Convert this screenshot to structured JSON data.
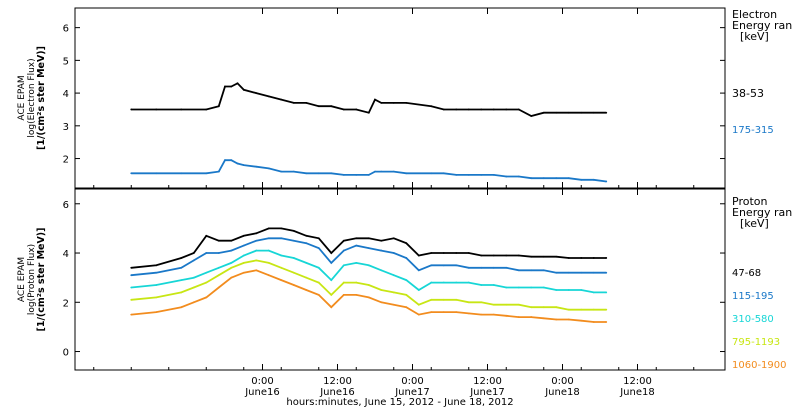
{
  "footer": {
    "xlabel": "hours:minutes, June 15, 2012 - June 18, 2012"
  },
  "x_ticks": [
    {
      "time": "0:00",
      "date": "June16"
    },
    {
      "time": "12:00",
      "date": "June16"
    },
    {
      "time": "0:00",
      "date": "June17"
    },
    {
      "time": "12:00",
      "date": "June17"
    },
    {
      "time": "0:00",
      "date": "June18"
    },
    {
      "time": "12:00",
      "date": "June18"
    }
  ],
  "colors": {
    "black": "#000000",
    "blue": "#1a78c8",
    "cyan": "#17d6d6",
    "yellow": "#c8e614",
    "orange": "#f28c1e"
  },
  "chart_data": [
    {
      "type": "line",
      "panel": "electron",
      "ylabel": [
        "ACE EPAM",
        "log(Electron Flux)",
        "[1/(cm²s ster MeV)]"
      ],
      "legend_title": [
        "Electron",
        "Energy ran",
        "[keV]"
      ],
      "yticks": [
        "2",
        "3",
        "4",
        "5",
        "6"
      ],
      "ylim": [
        1.1,
        6.6
      ],
      "x_hours": [
        0,
        4,
        8,
        12,
        14,
        15,
        16,
        17,
        18,
        20,
        22,
        24,
        26,
        28,
        30,
        32,
        34,
        36,
        38,
        39,
        40,
        42,
        44,
        48,
        50,
        52,
        54,
        56,
        58,
        60,
        62,
        64,
        66,
        68,
        70,
        72,
        74,
        76
      ],
      "series": [
        {
          "name": "38-53",
          "color": "black",
          "values": [
            3.5,
            3.5,
            3.5,
            3.5,
            3.6,
            4.2,
            4.2,
            4.3,
            4.1,
            4.0,
            3.9,
            3.8,
            3.7,
            3.7,
            3.6,
            3.6,
            3.5,
            3.5,
            3.4,
            3.8,
            3.7,
            3.7,
            3.7,
            3.6,
            3.5,
            3.5,
            3.5,
            3.5,
            3.5,
            3.5,
            3.5,
            3.3,
            3.4,
            3.4,
            3.4,
            3.4,
            3.4,
            3.4
          ]
        },
        {
          "name": "175-315",
          "color": "blue",
          "values": [
            1.55,
            1.55,
            1.55,
            1.55,
            1.6,
            1.95,
            1.95,
            1.85,
            1.8,
            1.75,
            1.7,
            1.6,
            1.6,
            1.55,
            1.55,
            1.55,
            1.5,
            1.5,
            1.5,
            1.6,
            1.6,
            1.6,
            1.55,
            1.55,
            1.55,
            1.5,
            1.5,
            1.5,
            1.5,
            1.45,
            1.45,
            1.4,
            1.4,
            1.4,
            1.4,
            1.35,
            1.35,
            1.3
          ]
        }
      ]
    },
    {
      "type": "line",
      "panel": "proton",
      "ylabel": [
        "ACE EPAM",
        "log(Proton Flux)",
        "[1/(cm²s ster MeV)]"
      ],
      "legend_title": [
        "Proton",
        "Energy ran",
        "[keV]"
      ],
      "yticks": [
        "0",
        "2",
        "4",
        "6"
      ],
      "ylim": [
        -0.75,
        6.6
      ],
      "x_hours": [
        0,
        4,
        8,
        10,
        12,
        14,
        16,
        18,
        20,
        22,
        24,
        26,
        28,
        30,
        32,
        34,
        36,
        38,
        40,
        42,
        44,
        46,
        48,
        50,
        52,
        54,
        56,
        58,
        60,
        62,
        64,
        66,
        68,
        70,
        72,
        74,
        76
      ],
      "series": [
        {
          "name": "47-68",
          "color": "black",
          "values": [
            3.4,
            3.5,
            3.8,
            4.0,
            4.7,
            4.5,
            4.5,
            4.7,
            4.8,
            5.0,
            5.0,
            4.9,
            4.7,
            4.6,
            4.0,
            4.5,
            4.6,
            4.6,
            4.5,
            4.6,
            4.4,
            3.9,
            4.0,
            4.0,
            4.0,
            4.0,
            3.9,
            3.9,
            3.9,
            3.9,
            3.85,
            3.85,
            3.85,
            3.8,
            3.8,
            3.8,
            3.8
          ]
        },
        {
          "name": "115-195",
          "color": "blue",
          "values": [
            3.1,
            3.2,
            3.4,
            3.7,
            4.0,
            4.0,
            4.1,
            4.3,
            4.5,
            4.6,
            4.6,
            4.5,
            4.4,
            4.2,
            3.6,
            4.1,
            4.3,
            4.2,
            4.1,
            4.0,
            3.8,
            3.3,
            3.5,
            3.5,
            3.5,
            3.4,
            3.4,
            3.4,
            3.4,
            3.3,
            3.3,
            3.3,
            3.2,
            3.2,
            3.2,
            3.2,
            3.2
          ]
        },
        {
          "name": "310-580",
          "color": "cyan",
          "values": [
            2.6,
            2.7,
            2.9,
            3.0,
            3.2,
            3.4,
            3.6,
            3.9,
            4.1,
            4.1,
            3.9,
            3.8,
            3.6,
            3.4,
            2.9,
            3.5,
            3.6,
            3.5,
            3.3,
            3.1,
            2.9,
            2.5,
            2.8,
            2.8,
            2.8,
            2.8,
            2.7,
            2.7,
            2.6,
            2.6,
            2.6,
            2.6,
            2.5,
            2.5,
            2.5,
            2.4,
            2.4
          ]
        },
        {
          "name": "795-1193",
          "color": "yellow",
          "values": [
            2.1,
            2.2,
            2.4,
            2.6,
            2.8,
            3.1,
            3.4,
            3.6,
            3.7,
            3.6,
            3.4,
            3.2,
            3.0,
            2.8,
            2.3,
            2.8,
            2.8,
            2.7,
            2.5,
            2.4,
            2.3,
            1.9,
            2.1,
            2.1,
            2.1,
            2.0,
            2.0,
            1.9,
            1.9,
            1.9,
            1.8,
            1.8,
            1.8,
            1.7,
            1.7,
            1.7,
            1.7
          ]
        },
        {
          "name": "1060-1900",
          "color": "orange",
          "values": [
            1.5,
            1.6,
            1.8,
            2.0,
            2.2,
            2.6,
            3.0,
            3.2,
            3.3,
            3.1,
            2.9,
            2.7,
            2.5,
            2.3,
            1.8,
            2.3,
            2.3,
            2.2,
            2.0,
            1.9,
            1.8,
            1.5,
            1.6,
            1.6,
            1.6,
            1.55,
            1.5,
            1.5,
            1.45,
            1.4,
            1.4,
            1.35,
            1.3,
            1.3,
            1.25,
            1.2,
            1.2
          ]
        }
      ]
    }
  ]
}
